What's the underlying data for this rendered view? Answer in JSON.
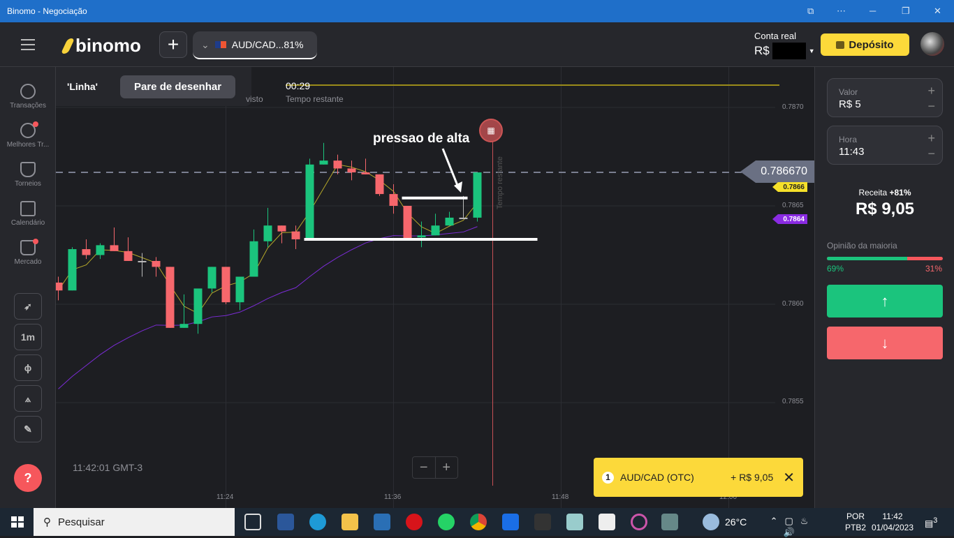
{
  "window": {
    "title": "Binomo - Negociação",
    "controls": [
      "⧉",
      "⋯",
      "─",
      "❐",
      "✕"
    ]
  },
  "header": {
    "logo": "binomo",
    "add_label": "+",
    "asset": "AUD/CAD...81%",
    "account_label": "Conta real",
    "currency": "R$",
    "deposit_label": "Depósito"
  },
  "sidebar": {
    "items": [
      {
        "label": "Transações",
        "icon": "clock-icon"
      },
      {
        "label": "Melhores Tr...",
        "icon": "medal-icon",
        "badge": true
      },
      {
        "label": "Torneios",
        "icon": "trophy-icon"
      },
      {
        "label": "Calendário",
        "icon": "calendar-icon"
      },
      {
        "label": "Mercado",
        "icon": "shop-bag-icon",
        "badge": true
      }
    ],
    "tools": [
      {
        "label": "",
        "icon": "rocket-icon"
      },
      {
        "label": "1m",
        "icon": "timeframe"
      },
      {
        "label": "",
        "icon": "candles-icon"
      },
      {
        "label": "",
        "icon": "compass-icon"
      },
      {
        "label": "",
        "icon": "pencil-icon"
      }
    ],
    "help": "?"
  },
  "drawing": {
    "tool": "'Linha'",
    "stop_label": "Pare de desenhar",
    "visto": "visto"
  },
  "timer": {
    "value": "00:29",
    "label": "Tempo restante"
  },
  "chart": {
    "annotation": "pressao de alta",
    "vertical_label": "Tempo restante",
    "clock": "11:42:01 GMT-3",
    "zoom_minus": "−",
    "zoom_plus": "+"
  },
  "chart_data": {
    "type": "candlestick",
    "asset": "AUD/CAD",
    "timeframe": "1m",
    "current_price": "0.786670",
    "y_ticks": [
      "0.7870",
      "0.7865",
      "0.7860",
      "0.7855"
    ],
    "x_ticks": [
      "11:24",
      "11:36",
      "11:48",
      "12:00"
    ],
    "indicator_tags": [
      {
        "value": "0.7866",
        "color": "#f5e02a"
      },
      {
        "value": "0.7864",
        "color": "#8a2be2"
      }
    ],
    "candles_cols": [
      "time",
      "open",
      "high",
      "low",
      "close"
    ],
    "candles": [
      [
        "11:12",
        0.78611,
        0.78614,
        0.78602,
        0.78607
      ],
      [
        "11:13",
        0.78607,
        0.78629,
        0.78607,
        0.78628
      ],
      [
        "11:14",
        0.78628,
        0.78633,
        0.78623,
        0.78625
      ],
      [
        "11:15",
        0.78625,
        0.78631,
        0.78623,
        0.7863
      ],
      [
        "11:16",
        0.7863,
        0.78639,
        0.78627,
        0.78627
      ],
      [
        "11:17",
        0.78627,
        0.78634,
        0.78622,
        0.78622
      ],
      [
        "11:18",
        0.78622,
        0.78626,
        0.78614,
        0.78622
      ],
      [
        "11:19",
        0.78622,
        0.78624,
        0.78614,
        0.78619
      ],
      [
        "11:20",
        0.78619,
        0.78619,
        0.78588,
        0.78588
      ],
      [
        "11:21",
        0.78588,
        0.78605,
        0.78588,
        0.7859
      ],
      [
        "11:22",
        0.7859,
        0.78608,
        0.78585,
        0.78608
      ],
      [
        "11:23",
        0.78608,
        0.78619,
        0.78606,
        0.78619
      ],
      [
        "11:24",
        0.78619,
        0.78619,
        0.786,
        0.78601
      ],
      [
        "11:25",
        0.78601,
        0.78614,
        0.78597,
        0.78614
      ],
      [
        "11:26",
        0.78614,
        0.78638,
        0.78614,
        0.78632
      ],
      [
        "11:27",
        0.78632,
        0.78649,
        0.78629,
        0.7864
      ],
      [
        "11:28",
        0.7864,
        0.7864,
        0.78631,
        0.78637
      ],
      [
        "11:29",
        0.78637,
        0.7864,
        0.78628,
        0.78633
      ],
      [
        "11:30",
        0.78633,
        0.78674,
        0.78633,
        0.78671
      ],
      [
        "11:31",
        0.78671,
        0.78682,
        0.78671,
        0.78673
      ],
      [
        "11:32",
        0.78673,
        0.78676,
        0.78666,
        0.78669
      ],
      [
        "11:33",
        0.78669,
        0.78673,
        0.78663,
        0.78667
      ],
      [
        "11:34",
        0.78667,
        0.78674,
        0.78666,
        0.78666
      ],
      [
        "11:35",
        0.78666,
        0.78666,
        0.78655,
        0.78656
      ],
      [
        "11:36",
        0.78656,
        0.78661,
        0.78646,
        0.7865
      ],
      [
        "11:37",
        0.7865,
        0.7865,
        0.78633,
        0.78633
      ],
      [
        "11:38",
        0.78634,
        0.78642,
        0.78629,
        0.78635
      ],
      [
        "11:39",
        0.78635,
        0.78646,
        0.78635,
        0.7864
      ],
      [
        "11:40",
        0.7864,
        0.78647,
        0.7864,
        0.78644
      ],
      [
        "11:41",
        0.78644,
        0.78655,
        0.78644,
        0.78644
      ],
      [
        "11:42",
        0.78644,
        0.78667,
        0.78642,
        0.78667
      ]
    ],
    "drawn_lines": [
      {
        "price": 0.78654,
        "from": "11:37",
        "to": "11:41"
      },
      {
        "price": 0.78633,
        "from": "11:30",
        "to": "11:46"
      }
    ],
    "expiry": "11:43",
    "colors": {
      "up": "#1bc47d",
      "down": "#f6676c",
      "fast_ma": "#b5a82a",
      "slow_ma": "#7b2cd6"
    }
  },
  "panel": {
    "valor_label": "Valor",
    "valor": "R$ 5",
    "hora_label": "Hora",
    "hora": "11:43",
    "plus": "+",
    "minus": "−",
    "receita_label": "Receita",
    "receita_pct": "+81%",
    "receita": "R$ 9,05",
    "opinion_label": "Opinião da maioria",
    "up_pct": "69%",
    "down_pct": "31%",
    "up_fraction": 0.69,
    "up_arrow": "↑",
    "down_arrow": "↓"
  },
  "toast": {
    "count": "1",
    "asset": "AUD/CAD (OTC)",
    "profit": "+ R$ 9,05",
    "close": "✕"
  },
  "taskbar": {
    "search": "Pesquisar",
    "temp": "26°C",
    "lang1": "POR",
    "lang2": "PTB2",
    "time": "11:42",
    "date": "01/04/2023",
    "notifications": "3"
  }
}
